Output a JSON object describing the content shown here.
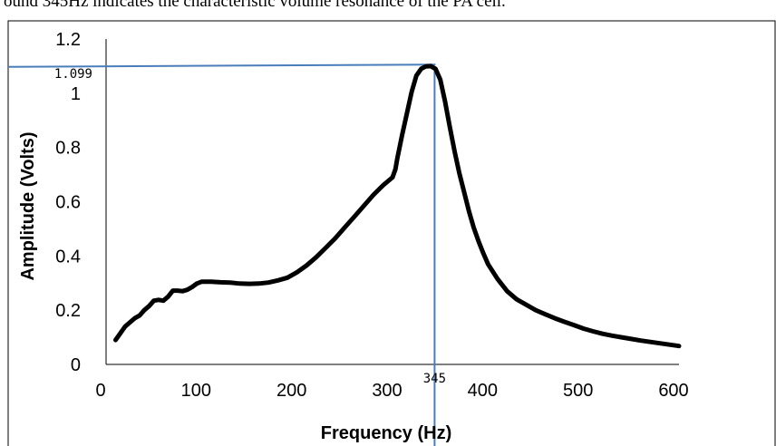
{
  "caption": "ound 345Hz indicates the characteristic volume resonance of the PA cell.",
  "chart_data": {
    "type": "line",
    "title": "",
    "xlabel": "Frequency (Hz)",
    "ylabel": "Amplitude (Volts)",
    "xlim": [
      0,
      600
    ],
    "ylim": [
      0,
      1.2
    ],
    "x_ticks": [
      "0",
      "100",
      "200",
      "300",
      "400",
      "500",
      "600"
    ],
    "y_ticks": [
      "0",
      "0.2",
      "0.4",
      "0.6",
      "0.8",
      "1",
      "1.2"
    ],
    "grid": false,
    "legend": "none",
    "series_color": "#000000",
    "marker_line_color": "#4a7ebb",
    "peak": {
      "x": 345,
      "y": 1.099,
      "x_label": "345",
      "y_label": "1.099"
    },
    "series": [
      {
        "x": [
          10,
          15,
          20,
          25,
          30,
          35,
          40,
          45,
          50,
          55,
          60,
          65,
          70,
          75,
          80,
          85,
          90,
          95,
          100,
          110,
          120,
          130,
          140,
          150,
          160,
          170,
          180,
          190,
          200,
          210,
          220,
          230,
          240,
          250,
          260,
          270,
          280,
          290,
          300,
          303,
          305,
          310,
          315,
          320,
          325,
          330,
          335,
          340,
          345,
          350,
          355,
          360,
          365,
          370,
          375,
          380,
          385,
          390,
          395,
          400,
          410,
          420,
          430,
          440,
          450,
          460,
          470,
          480,
          490,
          500,
          510,
          520,
          530,
          540,
          550,
          560,
          570,
          580,
          590,
          600
        ],
        "y": [
          0.09,
          0.115,
          0.14,
          0.155,
          0.17,
          0.18,
          0.2,
          0.215,
          0.235,
          0.238,
          0.235,
          0.25,
          0.272,
          0.272,
          0.27,
          0.275,
          0.285,
          0.298,
          0.305,
          0.305,
          0.303,
          0.302,
          0.298,
          0.297,
          0.298,
          0.302,
          0.31,
          0.32,
          0.34,
          0.365,
          0.395,
          0.43,
          0.465,
          0.505,
          0.545,
          0.585,
          0.625,
          0.66,
          0.69,
          0.72,
          0.76,
          0.845,
          0.925,
          1.005,
          1.065,
          1.09,
          1.099,
          1.1,
          1.09,
          1.05,
          0.97,
          0.875,
          0.785,
          0.705,
          0.635,
          0.565,
          0.505,
          0.455,
          0.41,
          0.37,
          0.315,
          0.27,
          0.24,
          0.22,
          0.2,
          0.185,
          0.17,
          0.157,
          0.145,
          0.132,
          0.122,
          0.113,
          0.106,
          0.1,
          0.094,
          0.088,
          0.083,
          0.078,
          0.073,
          0.068
        ]
      }
    ]
  }
}
